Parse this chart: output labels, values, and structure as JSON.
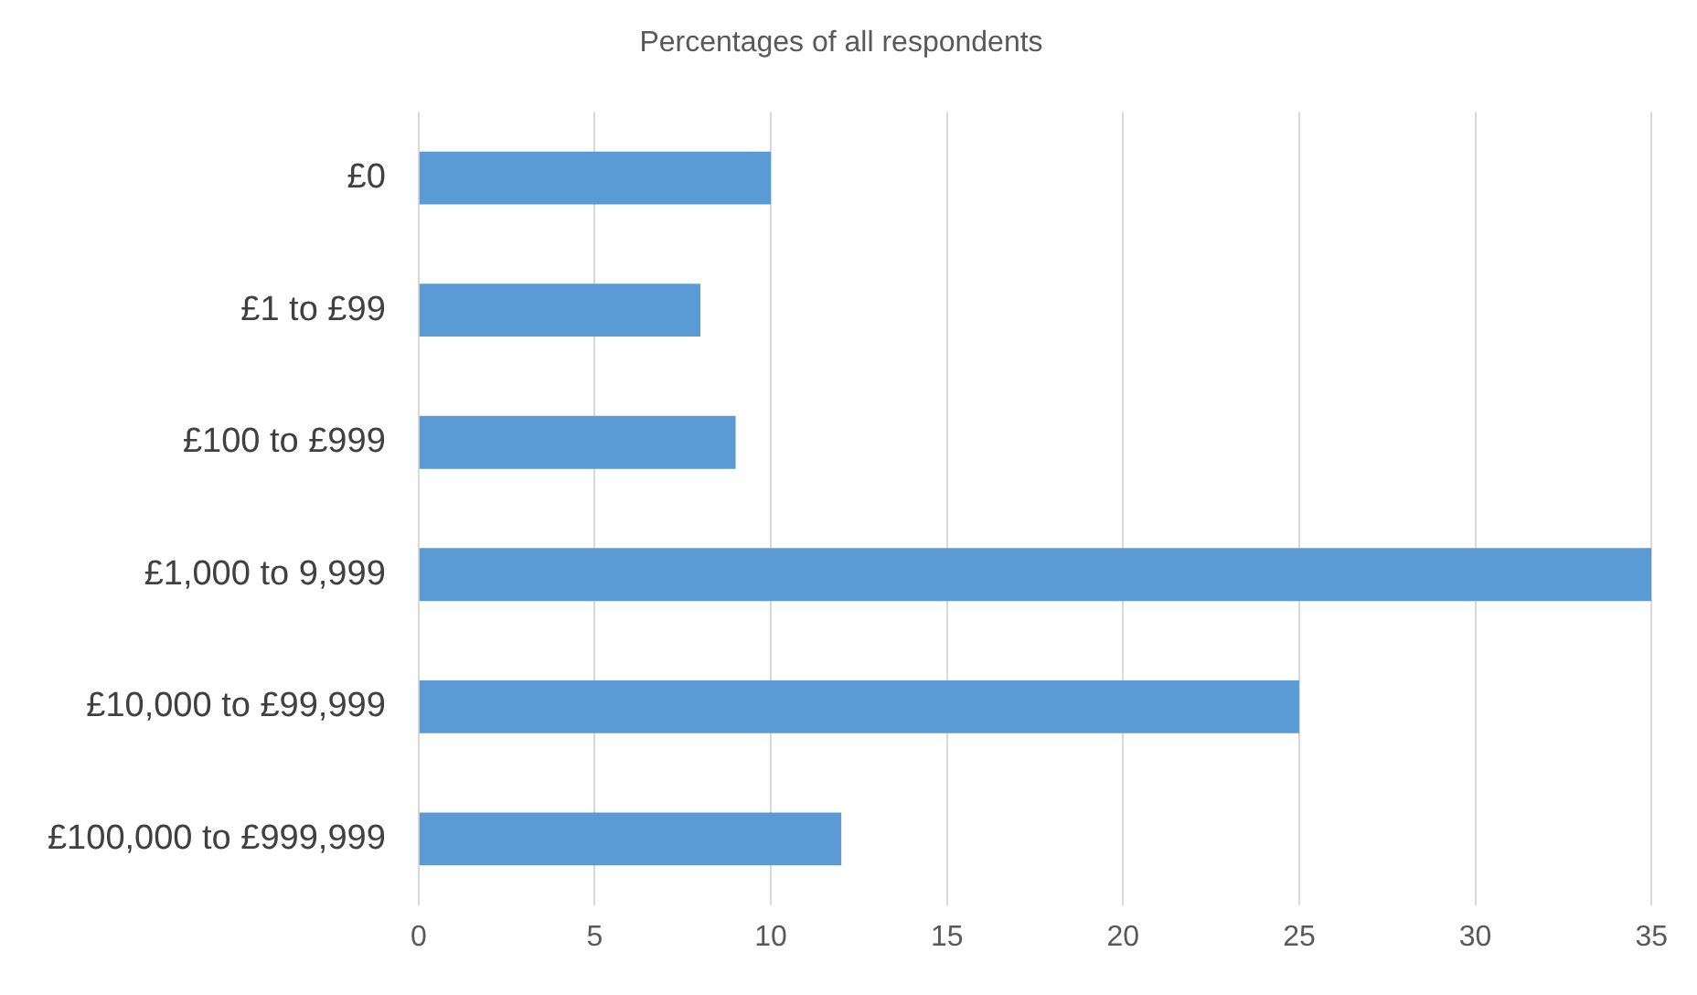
{
  "chart_data": {
    "type": "bar",
    "orientation": "horizontal",
    "title": "Percentages of all respondents",
    "categories": [
      "£0",
      "£1 to £99",
      "£100 to £999",
      "£1,000 to 9,999",
      "£10,000 to £99,999",
      "£100,000 to £999,999"
    ],
    "values": [
      10,
      8,
      9,
      35,
      25,
      12
    ],
    "color": "#5b9bd5",
    "xlim": [
      0,
      35
    ],
    "xticks": [
      0,
      5,
      10,
      15,
      20,
      25,
      30,
      35
    ],
    "grid": "x",
    "legend": false
  }
}
